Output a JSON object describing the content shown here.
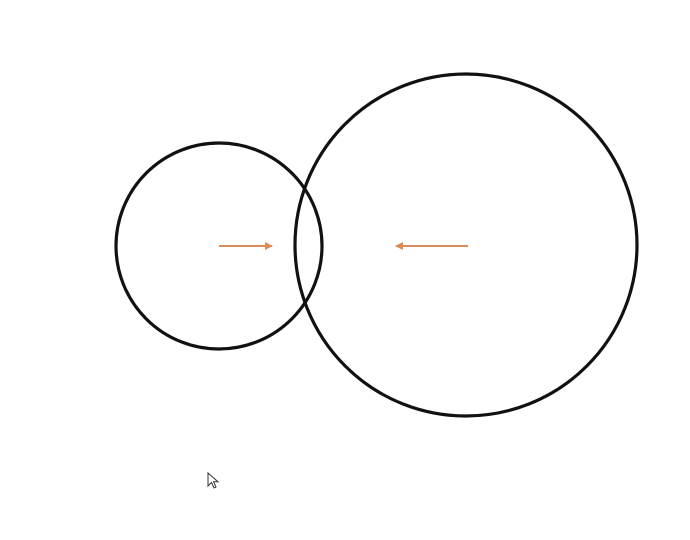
{
  "diagram": {
    "background": "#ffffff",
    "circle_color": "#111111",
    "arrow_color": "#d98c57",
    "shapes": [
      {
        "kind": "circle",
        "name": "small-circle"
      },
      {
        "kind": "circle",
        "name": "large-circle"
      }
    ],
    "arrows": [
      {
        "name": "arrow-right",
        "direction": "right"
      },
      {
        "name": "arrow-left",
        "direction": "left"
      }
    ]
  },
  "cursor": {
    "icon": "mouse-pointer-icon"
  }
}
